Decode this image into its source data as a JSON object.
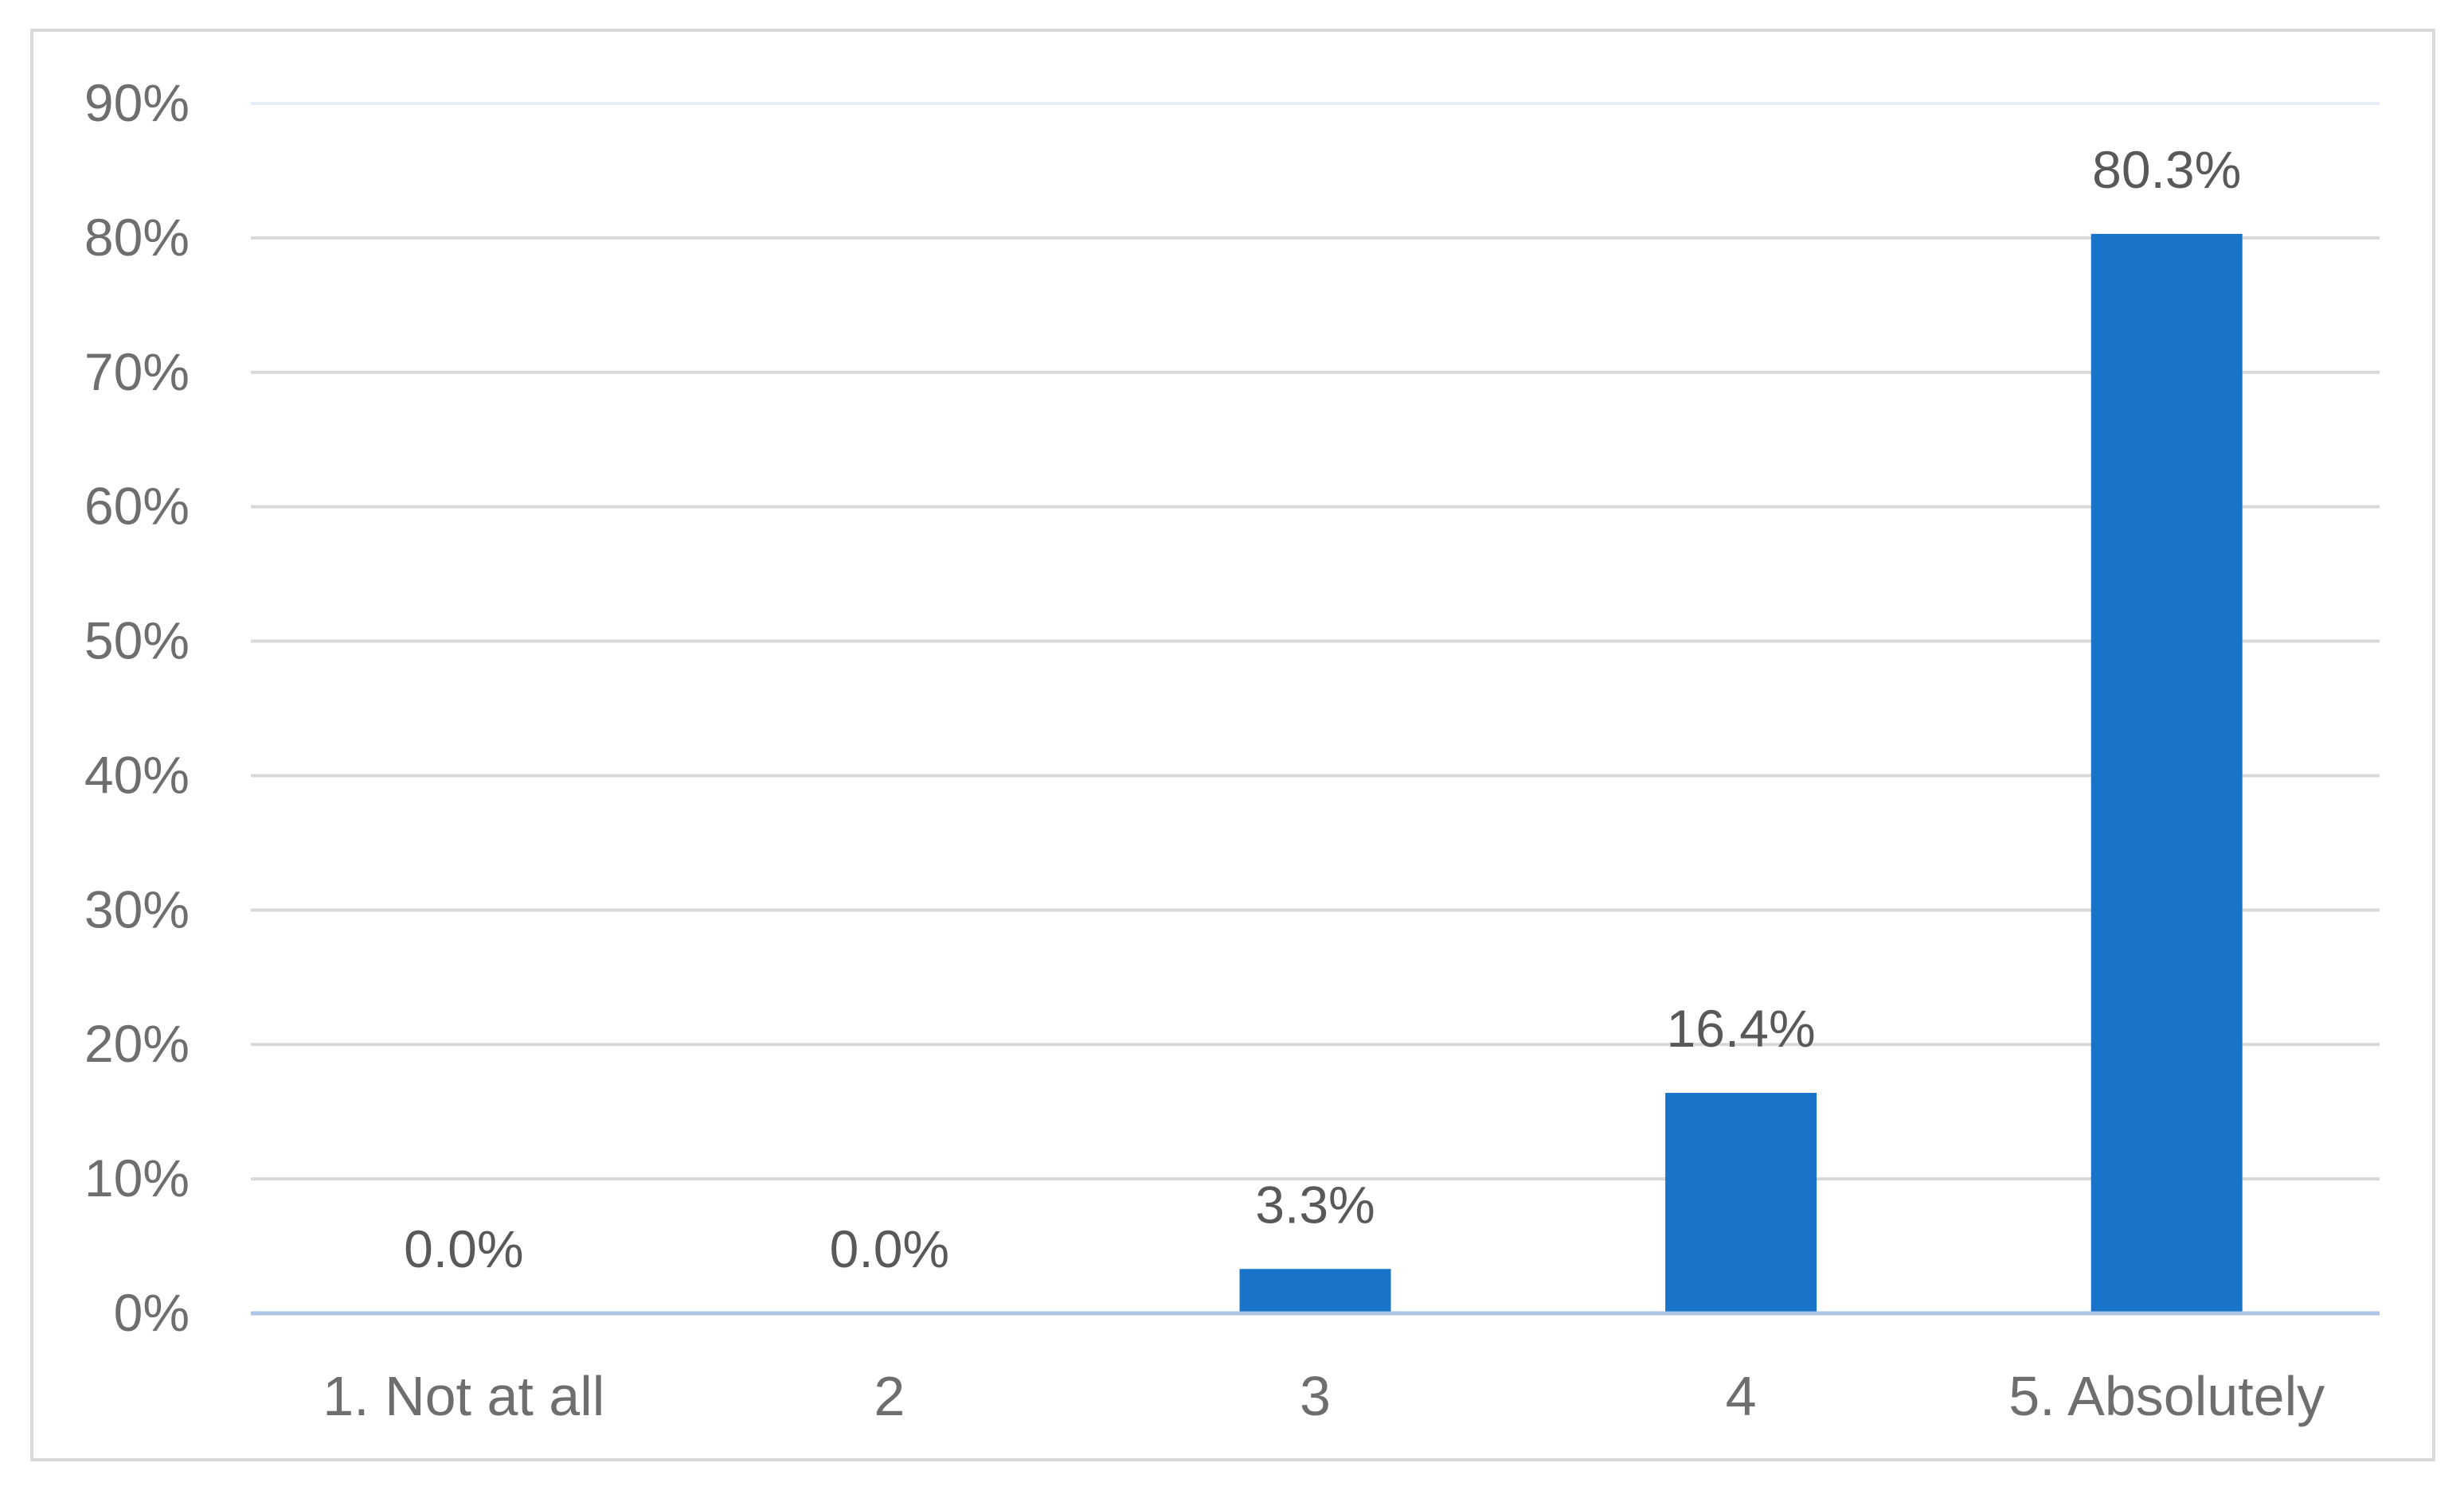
{
  "chart_data": {
    "type": "bar",
    "categories": [
      "1. Not at all",
      "2",
      "3",
      "4",
      "5. Absolutely"
    ],
    "values": [
      0.0,
      0.0,
      3.3,
      16.4,
      80.3
    ],
    "data_labels": [
      "0.0%",
      "0.0%",
      "3.3%",
      "16.4%",
      "80.3%"
    ],
    "title": "",
    "xlabel": "",
    "ylabel": "",
    "ylim": [
      0,
      90
    ],
    "y_ticks": [
      0,
      10,
      20,
      30,
      40,
      50,
      60,
      70,
      80,
      90
    ],
    "y_tick_labels": [
      "0%",
      "10%",
      "20%",
      "30%",
      "40%",
      "50%",
      "60%",
      "70%",
      "80%",
      "90%"
    ],
    "grid": true,
    "legend": "none",
    "bar_color": "#1873c9",
    "grid_color": "#d9d9d9",
    "axis_color": "#a9c4e6"
  }
}
